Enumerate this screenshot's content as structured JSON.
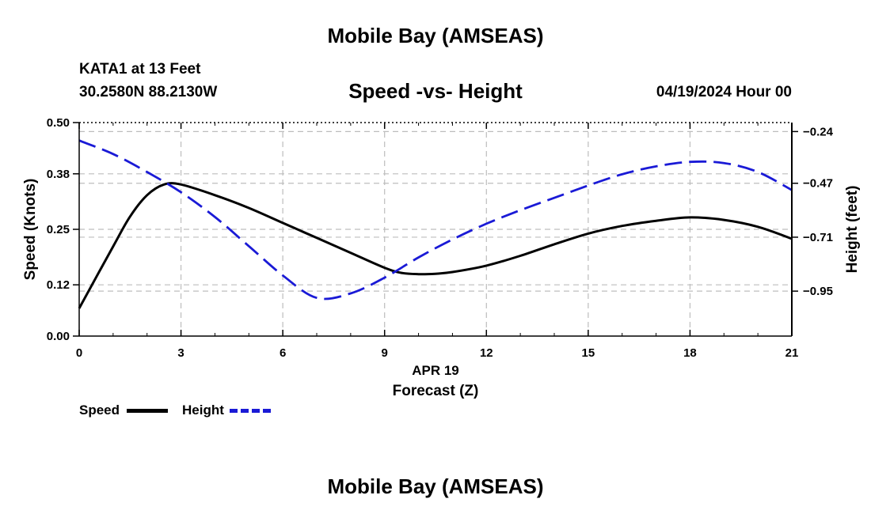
{
  "header": {
    "title": "Mobile Bay (AMSEAS)",
    "station": "KATA1 at 13 Feet",
    "coords": "30.2580N  88.2130W",
    "datetime": "04/19/2024 Hour 00",
    "footer_title": "Mobile Bay (AMSEAS)"
  },
  "chart_data": {
    "type": "line",
    "title": "Speed -vs- Height",
    "date_label": "APR 19",
    "xlabel": "Forecast (Z)",
    "ylabel_left": "Speed (Knots)",
    "ylabel_right": "Height (feet)",
    "xlim": [
      0,
      21
    ],
    "ylim_left": [
      0,
      0.5
    ],
    "ylim_right": [
      -1.15,
      -0.2
    ],
    "x_ticks": [
      0,
      3,
      6,
      9,
      12,
      15,
      18,
      21
    ],
    "y_left_ticks": [
      0.0,
      0.12,
      0.25,
      0.38,
      0.5
    ],
    "y_left_tick_labels": [
      "0.00",
      "0.12",
      "0.25",
      "0.38",
      "0.50"
    ],
    "y_right_ticks": [
      -0.24,
      -0.47,
      -0.71,
      -0.95
    ],
    "y_right_tick_labels": [
      "−0.24",
      "−0.47",
      "−0.71",
      "−0.95"
    ],
    "grid": true,
    "series": [
      {
        "name": "Speed",
        "axis": "left",
        "color": "#000000",
        "style": "solid",
        "x": [
          0,
          1,
          1.5,
          2,
          2.5,
          3,
          4,
          5,
          6,
          7,
          8,
          9,
          9.5,
          10,
          10.5,
          11,
          12,
          13,
          14,
          15,
          16,
          17,
          18,
          19,
          20,
          21
        ],
        "values": [
          0.065,
          0.21,
          0.28,
          0.33,
          0.355,
          0.355,
          0.33,
          0.3,
          0.265,
          0.23,
          0.195,
          0.16,
          0.148,
          0.145,
          0.146,
          0.15,
          0.165,
          0.188,
          0.215,
          0.24,
          0.258,
          0.27,
          0.278,
          0.272,
          0.256,
          0.228
        ]
      },
      {
        "name": "Height",
        "axis": "right",
        "color": "#1a1ad6",
        "style": "dashed",
        "x": [
          0,
          1,
          2,
          3,
          4,
          5,
          6,
          7,
          8,
          9,
          10,
          11,
          12,
          13,
          14,
          15,
          16,
          17,
          18,
          19,
          20,
          21
        ],
        "values": [
          -0.28,
          -0.34,
          -0.42,
          -0.51,
          -0.62,
          -0.75,
          -0.88,
          -0.98,
          -0.96,
          -0.89,
          -0.8,
          -0.72,
          -0.65,
          -0.59,
          -0.535,
          -0.48,
          -0.43,
          -0.395,
          -0.375,
          -0.38,
          -0.42,
          -0.5
        ]
      }
    ]
  }
}
